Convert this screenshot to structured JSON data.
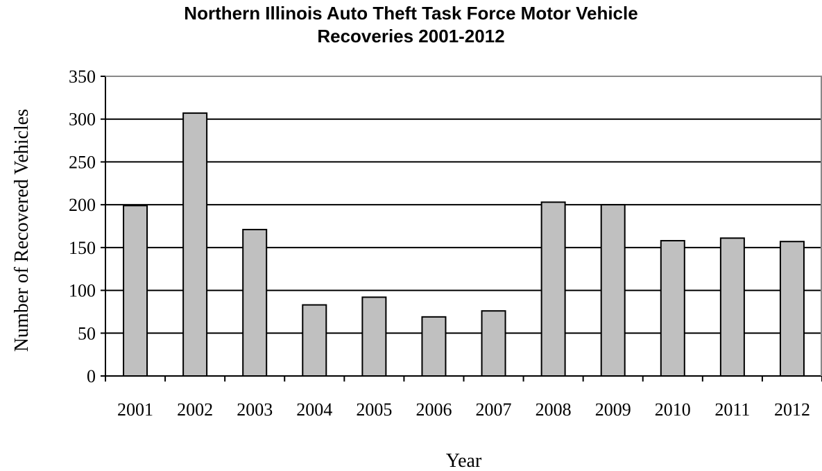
{
  "chart_data": {
    "type": "bar",
    "title_lines": [
      "Northern Illinois Auto Theft Task Force Motor Vehicle",
      "Recoveries 2001-2012"
    ],
    "xlabel": "Year",
    "ylabel": "Number of Recovered Vehicles",
    "categories": [
      "2001",
      "2002",
      "2003",
      "2004",
      "2005",
      "2006",
      "2007",
      "2008",
      "2009",
      "2010",
      "2011",
      "2012"
    ],
    "values": [
      199,
      307,
      171,
      83,
      92,
      69,
      76,
      203,
      200,
      158,
      161,
      157
    ],
    "ylim": [
      0,
      350
    ],
    "yticks": [
      0,
      50,
      100,
      150,
      200,
      250,
      300,
      350
    ],
    "grid": true,
    "legend": "none",
    "colors": {
      "bar_fill": "#c0c0c0",
      "bar_stroke": "#000000",
      "grid": "#000000"
    }
  }
}
